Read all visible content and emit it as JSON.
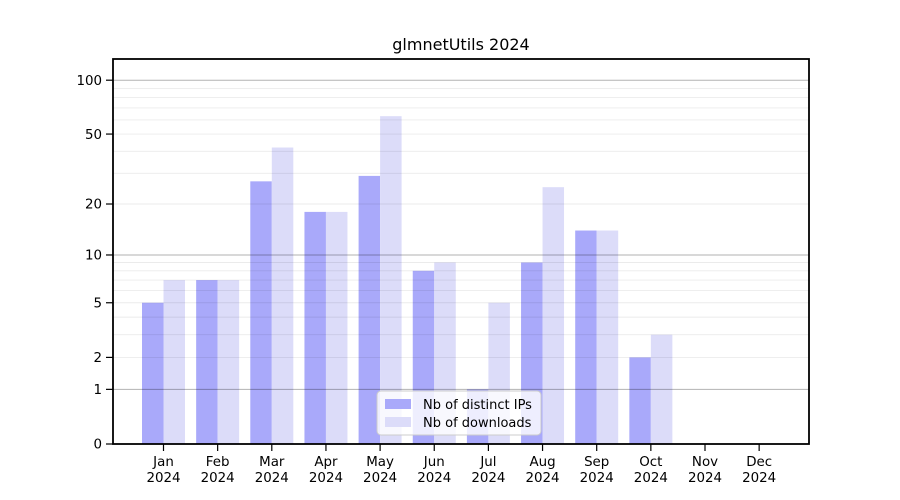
{
  "title": "glmnetUtils 2024",
  "chart_data": {
    "type": "bar",
    "title": "glmnetUtils 2024",
    "xlabel": "",
    "ylabel": "",
    "yscale": "log1p",
    "ylim": [
      0,
      131
    ],
    "grid": true,
    "legend_position": "lower center",
    "categories": [
      "Jan 2024",
      "Feb 2024",
      "Mar 2024",
      "Apr 2024",
      "May 2024",
      "Jun 2024",
      "Jul 2024",
      "Aug 2024",
      "Sep 2024",
      "Oct 2024",
      "Nov 2024",
      "Dec 2024"
    ],
    "series": [
      {
        "name": "Nb of distinct IPs",
        "color": "#a9a9fa",
        "values": [
          5,
          7,
          27,
          18,
          29,
          8,
          1,
          9,
          14,
          2,
          0,
          0
        ]
      },
      {
        "name": "Nb of downloads",
        "color": "#dcdcf9",
        "values": [
          7,
          7,
          42,
          18,
          63,
          9,
          5,
          25,
          14,
          3,
          0,
          0
        ]
      }
    ],
    "y_tick_values": [
      0,
      1,
      2,
      5,
      10,
      20,
      50,
      100
    ],
    "y_tick_labels": [
      "0",
      "1",
      "2",
      "5",
      "10",
      "20",
      "50",
      "100"
    ],
    "major_gridlines": [
      1,
      10,
      100
    ],
    "minor_gridlines": [
      2,
      3,
      4,
      5,
      6,
      7,
      8,
      9,
      20,
      30,
      40,
      50,
      60,
      70,
      80,
      90
    ]
  },
  "colors": {
    "bar_distinct_ips": "#a9a9fa",
    "bar_downloads": "#dcdcf9",
    "major_grid": "rgba(0,0,0,0.30)",
    "minor_grid": "rgba(0,0,0,0.08)",
    "axis": "#000000",
    "legend_border": "#cccccc",
    "legend_bg": "#ffffff",
    "background": "#ffffff"
  }
}
